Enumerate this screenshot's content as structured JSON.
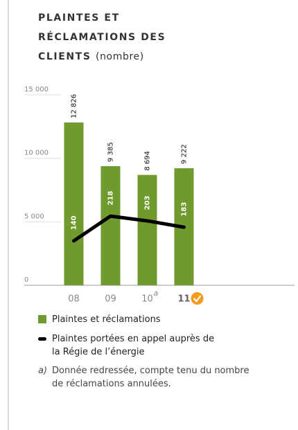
{
  "chart_data": {
    "type": "bar",
    "title": "PLAINTES ET RÉCLAMATIONS DES CLIENTS",
    "subtitle": "(nombre)",
    "categories": [
      "08",
      "09",
      "10",
      "11"
    ],
    "category_note": "a",
    "series": [
      {
        "name": "Plaintes et réclamations",
        "color": "#6f9a2d",
        "values": [
          12826,
          9385,
          8694,
          9222
        ],
        "value_labels": [
          "12 826",
          "9 385",
          "8 694",
          "9 222"
        ]
      },
      {
        "name": "Plaintes portées en appel auprès de la Régie de l’énergie",
        "color": "#000000",
        "type": "line",
        "axis": "y2",
        "values": [
          140,
          218,
          203,
          183
        ]
      }
    ],
    "ylim": [
      0,
      15000
    ],
    "yticks": [
      0,
      {
        "value": 5000,
        "label": "5 000"
      },
      {
        "value": 10000,
        "label": "10 000"
      },
      {
        "value": 15000,
        "label": "15 000"
      }
    ],
    "y2lim": [
      0,
      600
    ],
    "footnote_label": "a)",
    "footnote": "Donnée redressée, compte tenu du nombre de réclamations annulées."
  }
}
